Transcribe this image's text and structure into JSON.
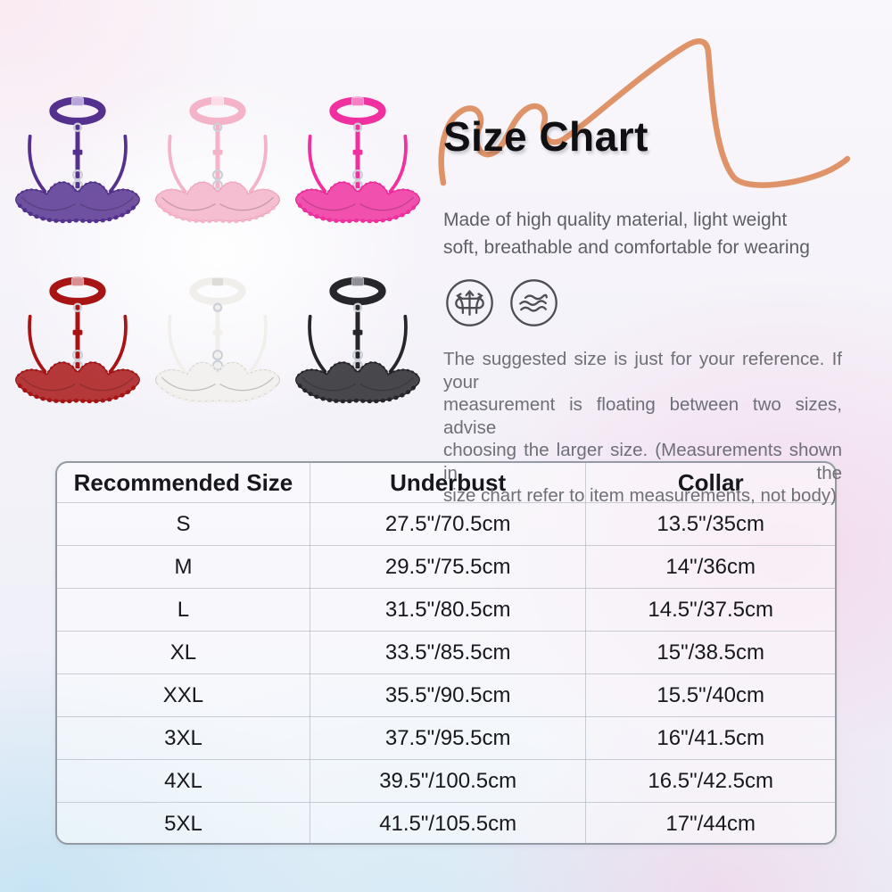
{
  "hero": {
    "heading": "Size Chart",
    "description_lines": [
      "Made of high quality material, light weight",
      "soft, breathable and comfortable for wearing"
    ],
    "note_lines": [
      "The suggested size is just for your reference. If your",
      "measurement is floating between two sizes, advise",
      "choosing the larger size. (Measurements shown in the",
      "size chart refer to item measurements, not body)"
    ],
    "care_icons": [
      "breathable-icon",
      "soft-waves-icon"
    ],
    "colors": {
      "swoosh_accent": "#df9368",
      "title_text": "#101013",
      "body_text": "#5e5f66",
      "note_text": "#6e6f77",
      "icon_stroke": "#4c4d55"
    }
  },
  "products": {
    "variants": [
      {
        "name": "purple",
        "color": "#55318f",
        "clasp": "#b9a6dc",
        "edge": "#3f2370"
      },
      {
        "name": "pink",
        "color": "#f4b3c8",
        "clasp": "#fadde7",
        "edge": "#e393b1"
      },
      {
        "name": "rose",
        "color": "#f0309e",
        "clasp": "#f77fc4",
        "edge": "#d31583"
      },
      {
        "name": "red",
        "color": "#a81414",
        "clasp": "#d98f8f",
        "edge": "#7e0d0d"
      },
      {
        "name": "white",
        "color": "#f1efec",
        "clasp": "#dfdcd8",
        "edge": "#cfccc7"
      },
      {
        "name": "black",
        "color": "#26262b",
        "clasp": "#8f8f97",
        "edge": "#101014"
      }
    ]
  },
  "size_table": {
    "headers": [
      "Recommended Size",
      "Underbust",
      "Collar"
    ],
    "rows": [
      [
        "S",
        "27.5\"/70.5cm",
        "13.5\"/35cm"
      ],
      [
        "M",
        "29.5\"/75.5cm",
        "14\"/36cm"
      ],
      [
        "L",
        "31.5\"/80.5cm",
        "14.5\"/37.5cm"
      ],
      [
        "XL",
        "33.5\"/85.5cm",
        "15\"/38.5cm"
      ],
      [
        "XXL",
        "35.5\"/90.5cm",
        "15.5\"/40cm"
      ],
      [
        "3XL",
        "37.5\"/95.5cm",
        "16\"/41.5cm"
      ],
      [
        "4XL",
        "39.5\"/100.5cm",
        "16.5\"/42.5cm"
      ],
      [
        "5XL",
        "41.5\"/105.5cm",
        "17\"/44cm"
      ]
    ]
  }
}
